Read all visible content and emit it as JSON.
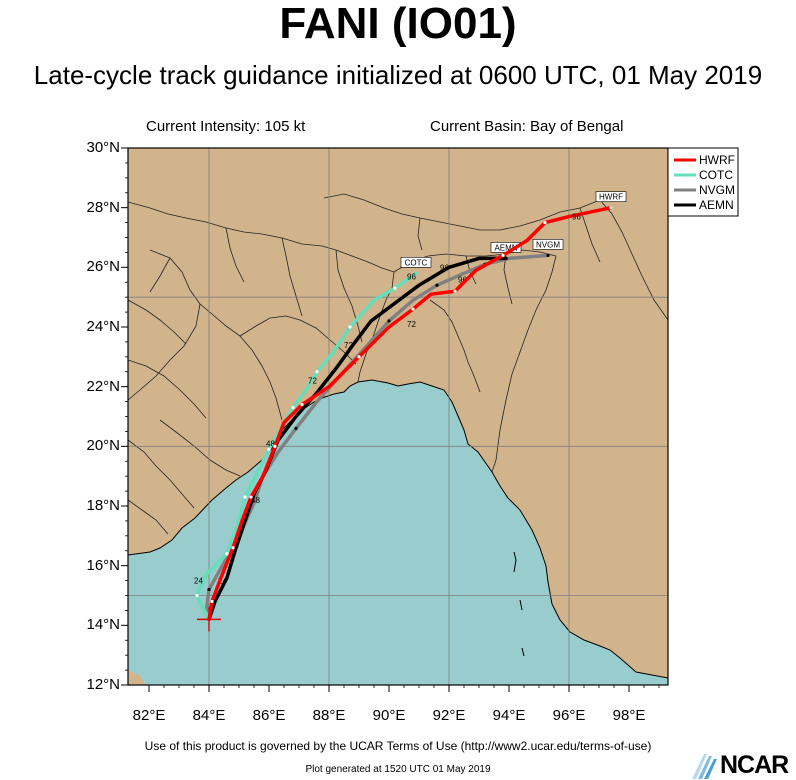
{
  "header": {
    "title": "FANI (IO01)",
    "subtitle": "Late-cycle track guidance initialized at 0600 UTC, 01 May 2019"
  },
  "info": {
    "intensity": "Current Intensity: 105 kt",
    "basin": "Current Basin: Bay of Bengal"
  },
  "axes": {
    "lon_min": 81.3,
    "lon_max": 99.3,
    "lat_min": 12,
    "lat_max": 30,
    "y_ticks": [
      {
        "value": 30,
        "label": "30°N"
      },
      {
        "value": 28,
        "label": "28°N"
      },
      {
        "value": 26,
        "label": "26°N"
      },
      {
        "value": 24,
        "label": "24°N"
      },
      {
        "value": 22,
        "label": "22°N"
      },
      {
        "value": 20,
        "label": "20°N"
      },
      {
        "value": 18,
        "label": "18°N"
      },
      {
        "value": 16,
        "label": "16°N"
      },
      {
        "value": 14,
        "label": "14°N"
      },
      {
        "value": 12,
        "label": "12°N"
      }
    ],
    "x_ticks": [
      {
        "value": 82,
        "label": "82°E"
      },
      {
        "value": 84,
        "label": "84°E"
      },
      {
        "value": 86,
        "label": "86°E"
      },
      {
        "value": 88,
        "label": "88°E"
      },
      {
        "value": 90,
        "label": "90°E"
      },
      {
        "value": 92,
        "label": "92°E"
      },
      {
        "value": 94,
        "label": "94°E"
      },
      {
        "value": 96,
        "label": "96°E"
      },
      {
        "value": 98,
        "label": "98°E"
      }
    ],
    "grid_lon": [
      84,
      88,
      92,
      96
    ],
    "grid_lat": [
      15,
      20,
      25
    ]
  },
  "colors": {
    "land": "#d2b48c",
    "ocean": "#99cccc",
    "HWRF": "#ff0000",
    "COTC": "#66ddbb",
    "NVGM": "#808080",
    "AEMN": "#000000",
    "grid": "#7f7f7f"
  },
  "legend": {
    "placement": "top-right",
    "entries": [
      "HWRF",
      "COTC",
      "NVGM",
      "AEMN"
    ]
  },
  "current_position": {
    "lon": 84.0,
    "lat": 14.2
  },
  "chart_data": {
    "type": "line",
    "x_unit": "longitude °E",
    "y_unit": "latitude °N",
    "series": [
      {
        "name": "HWRF",
        "points": [
          [
            84.0,
            14.2
          ],
          [
            84.1,
            14.8
          ],
          [
            84.4,
            15.6
          ],
          [
            84.8,
            16.6
          ],
          [
            85.1,
            17.5
          ],
          [
            85.4,
            18.3
          ],
          [
            85.8,
            19.0
          ],
          [
            86.2,
            20.0
          ],
          [
            86.5,
            20.8
          ],
          [
            87.1,
            21.4
          ],
          [
            88.0,
            22.0
          ],
          [
            89.0,
            23.0
          ],
          [
            90.0,
            24.0
          ],
          [
            90.8,
            24.6
          ],
          [
            91.4,
            25.1
          ],
          [
            92.2,
            25.2
          ],
          [
            92.9,
            25.9
          ],
          [
            93.8,
            26.4
          ],
          [
            94.6,
            26.9
          ],
          [
            95.2,
            27.5
          ],
          [
            96.0,
            27.7
          ],
          [
            97.4,
            28.0
          ]
        ],
        "labels": [
          {
            "text": "96",
            "lon": 96.1,
            "lat": 27.6
          }
        ],
        "end_tag": "HWRF"
      },
      {
        "name": "COTC",
        "points": [
          [
            84.0,
            14.2
          ],
          [
            83.6,
            15.0
          ],
          [
            83.9,
            15.7
          ],
          [
            84.6,
            16.4
          ],
          [
            85.0,
            17.5
          ],
          [
            85.2,
            18.3
          ],
          [
            85.6,
            19.1
          ],
          [
            86.0,
            19.9
          ],
          [
            86.4,
            20.6
          ],
          [
            86.8,
            21.3
          ],
          [
            87.3,
            22.0
          ],
          [
            87.6,
            22.5
          ],
          [
            88.1,
            23.1
          ],
          [
            88.7,
            24.0
          ],
          [
            89.5,
            24.9
          ],
          [
            90.2,
            25.3
          ],
          [
            90.9,
            25.8
          ]
        ],
        "labels": [
          {
            "text": "24",
            "lon": 83.5,
            "lat": 15.4
          },
          {
            "text": "72",
            "lon": 87.3,
            "lat": 22.1
          },
          {
            "text": "96",
            "lon": 90.6,
            "lat": 25.6
          }
        ],
        "end_tag": "COTC"
      },
      {
        "name": "NVGM",
        "points": [
          [
            83.9,
            14.4
          ],
          [
            84.0,
            15.2
          ],
          [
            84.5,
            16.1
          ],
          [
            85.0,
            17.0
          ],
          [
            85.5,
            18.1
          ],
          [
            85.8,
            19.0
          ],
          [
            86.3,
            19.8
          ],
          [
            86.9,
            20.6
          ],
          [
            87.6,
            21.5
          ],
          [
            88.4,
            22.4
          ],
          [
            89.2,
            23.3
          ],
          [
            90.0,
            24.2
          ],
          [
            90.8,
            24.9
          ],
          [
            91.6,
            25.4
          ],
          [
            92.5,
            25.8
          ],
          [
            93.2,
            26.1
          ],
          [
            94.0,
            26.3
          ],
          [
            95.3,
            26.4
          ]
        ],
        "labels": [
          {
            "text": "48",
            "lon": 85.4,
            "lat": 18.1
          },
          {
            "text": "72",
            "lon": 90.6,
            "lat": 24.0
          },
          {
            "text": "96",
            "lon": 92.3,
            "lat": 25.5
          }
        ],
        "end_tag": "NVGM"
      },
      {
        "name": "AEMN",
        "points": [
          [
            84.0,
            14.2
          ],
          [
            84.2,
            14.8
          ],
          [
            84.6,
            15.6
          ],
          [
            84.9,
            16.6
          ],
          [
            85.2,
            17.5
          ],
          [
            85.5,
            18.4
          ],
          [
            85.9,
            19.2
          ],
          [
            86.3,
            20.2
          ],
          [
            86.9,
            21.0
          ],
          [
            87.6,
            21.8
          ],
          [
            88.3,
            22.7
          ],
          [
            88.8,
            23.4
          ],
          [
            89.4,
            24.2
          ],
          [
            90.2,
            24.8
          ],
          [
            91.0,
            25.4
          ],
          [
            92.0,
            26.0
          ],
          [
            93.0,
            26.3
          ],
          [
            93.9,
            26.3
          ]
        ],
        "labels": [
          {
            "text": "24",
            "lon": 84.3,
            "lat": 15.4
          },
          {
            "text": "48",
            "lon": 85.9,
            "lat": 20.0
          },
          {
            "text": "72",
            "lon": 88.5,
            "lat": 23.3
          },
          {
            "text": "96",
            "lon": 91.7,
            "lat": 25.9
          }
        ],
        "end_tag": "AEMN"
      }
    ]
  },
  "footer": {
    "terms": "Use of this product is governed by the UCAR Terms of Use (http://www2.ucar.edu/terms-of-use)",
    "generated": "Plot generated at 1520 UTC   01 May 2019",
    "logo_text": "NCAR"
  }
}
